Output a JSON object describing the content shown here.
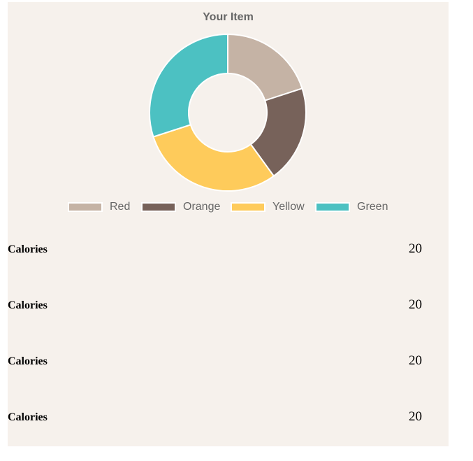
{
  "chart_data": {
    "type": "pie",
    "variant": "doughnut",
    "title": "Your Item",
    "categories": [
      "Red",
      "Orange",
      "Yellow",
      "Green"
    ],
    "values": [
      20,
      20,
      30,
      30
    ],
    "colors": [
      "#c5b3a5",
      "#77625a",
      "#fecb5b",
      "#4cc1c2"
    ],
    "legend_position": "bottom"
  },
  "nutrition": {
    "rows": [
      {
        "label": "Calories",
        "value": "20"
      },
      {
        "label": "Calories",
        "value": "20"
      },
      {
        "label": "Calories",
        "value": "20"
      },
      {
        "label": "Calories",
        "value": "20"
      }
    ]
  }
}
